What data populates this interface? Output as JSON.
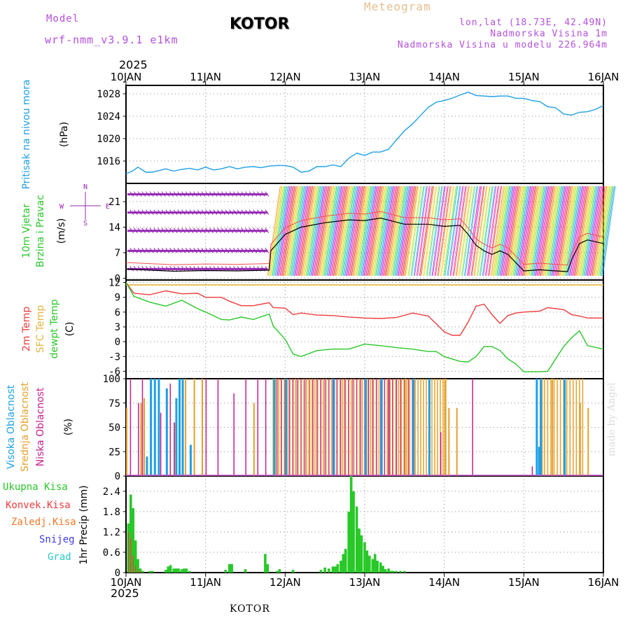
{
  "header": {
    "model_label": "Model",
    "model_name": "wrf-nmm_v3.9.1 e1km",
    "city": "KOTOR",
    "meteogram": "Meteogram",
    "lonlat": "lon,lat (18.73E, 42.49N)",
    "elevation": "Nadmorska Visina 1m",
    "model_elevation": "Nadmorska Visina u modelu 226.964m",
    "year_top": "2025",
    "year_bottom": "2025",
    "footer": "KOTOR",
    "watermark": "made by Angel"
  },
  "colors": {
    "pressure": "#1ea0e6",
    "temp2m": "#f03c3c",
    "sfc": "#e6b43c",
    "dewpt": "#28c828",
    "high_cloud": "#1ea0e6",
    "mid_cloud": "#e6a028",
    "low_cloud": "#c81e8c",
    "total_precip": "#28c828",
    "conv_precip": "#f03c3c",
    "frozen": "#f07828",
    "snow": "#3c3cf0",
    "graupel": "#28c8c8",
    "wind_purple": "#9628b4",
    "model_title": "#b450dc",
    "meteogram": "#e6be8c"
  },
  "chart_data": [
    {
      "id": "pressure",
      "type": "line",
      "ylabel_left": "Pritisak na nivou mora",
      "ylabel_unit": "(hPa)",
      "ylim": [
        1012,
        1029.5
      ],
      "yticks": [
        1016,
        1020,
        1024,
        1028
      ],
      "x_days": [
        0,
        0.08,
        0.15,
        0.25,
        0.33,
        0.42,
        0.5,
        0.6,
        0.7,
        0.8,
        0.9,
        1.0,
        1.1,
        1.2,
        1.3,
        1.4,
        1.5,
        1.6,
        1.7,
        1.8,
        1.9,
        2.0,
        2.1,
        2.2,
        2.3,
        2.4,
        2.5,
        2.6,
        2.7,
        2.8,
        2.9,
        3.0,
        3.1,
        3.2,
        3.3,
        3.4,
        3.5,
        3.6,
        3.7,
        3.8,
        3.9,
        4.0,
        4.1,
        4.2,
        4.3,
        4.4,
        4.5,
        4.6,
        4.7,
        4.8,
        4.9,
        5.0,
        5.1,
        5.2,
        5.3,
        5.4,
        5.5,
        5.6,
        5.7,
        5.8,
        5.9,
        6.0
      ],
      "values": [
        1013.7,
        1014.2,
        1014.9,
        1014.0,
        1014.0,
        1014.3,
        1014.6,
        1014.2,
        1014.5,
        1014.7,
        1014.4,
        1014.9,
        1014.4,
        1014.6,
        1015.0,
        1014.6,
        1014.9,
        1015.0,
        1014.8,
        1015.1,
        1015.2,
        1015.2,
        1014.9,
        1014.0,
        1014.2,
        1015.0,
        1015.0,
        1015.3,
        1015.0,
        1016.5,
        1017.4,
        1017.0,
        1017.6,
        1017.6,
        1018.1,
        1019.8,
        1021.4,
        1022.6,
        1024.1,
        1025.6,
        1026.5,
        1026.8,
        1027.2,
        1027.8,
        1028.3,
        1027.7,
        1027.6,
        1027.5,
        1027.6,
        1027.6,
        1027.2,
        1027.2,
        1026.8,
        1026.6,
        1025.7,
        1025.5,
        1024.4,
        1024.2,
        1024.7,
        1024.8,
        1025.2,
        1025.9
      ]
    },
    {
      "id": "wind",
      "type": "line",
      "ylabel_left": "10m Vjetar",
      "ylabel_left2": "Brzina i Pravac",
      "ylabel_unit": "(m/s)",
      "compass": "N S E W",
      "ylim": [
        -0.5,
        26
      ],
      "yticks": [
        0,
        7,
        14,
        21
      ],
      "x_days": [
        0,
        0.3,
        0.6,
        1.0,
        1.4,
        1.8,
        1.82,
        2.0,
        2.2,
        2.5,
        2.8,
        3.0,
        3.2,
        3.5,
        3.8,
        4.0,
        4.2,
        4.3,
        4.4,
        4.5,
        4.6,
        4.7,
        4.8,
        5.0,
        5.2,
        5.4,
        5.55,
        5.6,
        5.7,
        5.8,
        6.0
      ],
      "values": [
        2.5,
        2.2,
        1.9,
        2.1,
        2.0,
        2.2,
        7.5,
        12,
        14,
        15.2,
        16,
        15.8,
        16.5,
        14.8,
        14.8,
        14.2,
        14.5,
        12,
        9,
        7.5,
        6.5,
        7.5,
        6.5,
        2,
        2.3,
        2.0,
        1.8,
        5,
        9.5,
        10.5,
        9.5
      ]
    },
    {
      "id": "temperature",
      "type": "line",
      "ylabel_left": "2m Temp",
      "ylabel_left2": "SFC Temp",
      "ylabel_left3": "dewpt Temp",
      "ylabel_unit": "(C)",
      "ylim": [
        -7.5,
        12.5
      ],
      "yticks": [
        -6,
        -3,
        0,
        3,
        6,
        9,
        12
      ],
      "sfc_temp": 11.5,
      "x_days": [
        0,
        0.1,
        0.3,
        0.5,
        0.7,
        0.9,
        1.0,
        1.2,
        1.3,
        1.45,
        1.6,
        1.8,
        1.85,
        2.0,
        2.1,
        2.2,
        2.4,
        2.6,
        2.8,
        3.0,
        3.2,
        3.4,
        3.6,
        3.8,
        3.9,
        4.0,
        4.1,
        4.2,
        4.3,
        4.4,
        4.5,
        4.6,
        4.7,
        4.8,
        4.9,
        5.0,
        5.2,
        5.3,
        5.5,
        5.6,
        5.7,
        5.8,
        6.0
      ],
      "temp2m": [
        12,
        9.8,
        9.5,
        10.3,
        9.7,
        9.8,
        9.0,
        9.0,
        8.2,
        7.3,
        7.3,
        7.9,
        6.9,
        6.8,
        5.5,
        5.8,
        5.4,
        5.3,
        5.0,
        4.8,
        4.7,
        4.9,
        5.8,
        5.2,
        3.6,
        2.0,
        1.3,
        1.3,
        4.0,
        7.2,
        7.6,
        5.5,
        3.7,
        5.3,
        5.8,
        6.0,
        6.2,
        6.9,
        6.5,
        5.5,
        5.2,
        4.8,
        4.8
      ],
      "dewpt": [
        12,
        9.2,
        8.0,
        7.2,
        8.4,
        6.7,
        6.0,
        4.5,
        4.4,
        5.0,
        4.5,
        5.6,
        3.2,
        0.5,
        -2.5,
        -3.0,
        -1.8,
        -1.5,
        -1.5,
        -0.5,
        -0.8,
        -1.2,
        -1.5,
        -2.0,
        -2.0,
        -3.0,
        -3.5,
        -4.0,
        -4.1,
        -3.0,
        -1.0,
        -1.0,
        -1.8,
        -3.5,
        -4.5,
        -6.1,
        -6.1,
        -6.0,
        -1.0,
        0.8,
        2.2,
        -0.8,
        -1.5
      ]
    },
    {
      "id": "cloud",
      "type": "bar",
      "ylabel_left": "Visoka Oblacnost",
      "ylabel_left2": "Srednja Oblacnost",
      "ylabel_left3": "Niska Oblacnost",
      "ylabel_unit": "(%)",
      "ylim": [
        0,
        100
      ],
      "yticks": [
        0,
        25,
        50,
        75,
        100
      ],
      "high": [
        [
          0.25,
          20
        ],
        [
          0.3,
          100
        ],
        [
          0.35,
          100
        ],
        [
          0.4,
          100
        ],
        [
          0.5,
          90
        ],
        [
          0.62,
          80
        ],
        [
          0.66,
          100
        ],
        [
          0.7,
          100
        ],
        [
          0.8,
          32
        ],
        [
          1.85,
          100
        ],
        [
          2.0,
          100
        ],
        [
          2.6,
          100
        ],
        [
          3.0,
          100
        ],
        [
          3.2,
          100
        ],
        [
          3.6,
          100
        ],
        [
          3.8,
          100
        ],
        [
          5.15,
          100
        ],
        [
          5.18,
          30
        ],
        [
          5.2,
          100
        ],
        [
          5.5,
          100
        ]
      ],
      "mid": [
        [
          0.0,
          70
        ],
        [
          0.18,
          75
        ],
        [
          0.22,
          80
        ],
        [
          0.6,
          55
        ],
        [
          0.74,
          100
        ],
        [
          0.85,
          100
        ],
        [
          0.95,
          100
        ],
        [
          1.6,
          75
        ],
        [
          2.0,
          100
        ],
        [
          2.3,
          100
        ],
        [
          3.0,
          100
        ],
        [
          3.5,
          100
        ],
        [
          3.8,
          100
        ],
        [
          4.0,
          100
        ],
        [
          4.05,
          70
        ],
        [
          4.15,
          70
        ],
        [
          5.22,
          100
        ],
        [
          5.35,
          100
        ],
        [
          5.5,
          100
        ],
        [
          5.7,
          75
        ],
        [
          5.8,
          70
        ]
      ],
      "low": [
        [
          0.05,
          100
        ],
        [
          0.15,
          75
        ],
        [
          0.2,
          100
        ],
        [
          0.43,
          65
        ],
        [
          0.55,
          95
        ],
        [
          0.6,
          55
        ],
        [
          0.7,
          100
        ],
        [
          1.0,
          100
        ],
        [
          1.15,
          100
        ],
        [
          1.35,
          85
        ],
        [
          1.5,
          100
        ],
        [
          1.65,
          100
        ],
        [
          1.75,
          100
        ],
        [
          3.2,
          100
        ],
        [
          3.3,
          100
        ],
        [
          3.95,
          45
        ],
        [
          4.35,
          100
        ],
        [
          5.1,
          10
        ]
      ]
    },
    {
      "id": "precip",
      "type": "bar",
      "ylabel_left": "Ukupna Kisa",
      "ylabel_left2": "Konvek.Kisa",
      "ylabel_left3": "Zaledj.Kisa",
      "ylabel_left4": "Snijeg",
      "ylabel_left5": "Grad",
      "ylabel_unit": "1hr Precip (mm)",
      "ylim": [
        0,
        2.85
      ],
      "yticks": [
        0,
        0.6,
        1.2,
        1.8,
        2.4
      ],
      "x_days": [
        0.03,
        0.06,
        0.09,
        0.12,
        0.15,
        0.18,
        0.21,
        0.3,
        0.33,
        0.5,
        0.53,
        0.56,
        0.6,
        0.63,
        0.66,
        0.7,
        0.73,
        0.76,
        0.8,
        1.25,
        1.3,
        1.33,
        1.5,
        1.75,
        1.78,
        1.9,
        1.93,
        2.1,
        2.45,
        2.5,
        2.55,
        2.6,
        2.63,
        2.66,
        2.7,
        2.73,
        2.76,
        2.8,
        2.83,
        2.86,
        2.9,
        2.93,
        2.96,
        3.0,
        3.03,
        3.06,
        3.1,
        3.13,
        3.16,
        3.2,
        3.23,
        3.26,
        3.3,
        3.33,
        3.36,
        3.4,
        3.45,
        3.5
      ],
      "total": [
        1.45,
        2.3,
        1.9,
        0.95,
        0.4,
        0.12,
        0.05,
        0.05,
        0.05,
        0.08,
        0.18,
        0.22,
        0.12,
        0.12,
        0.12,
        0.1,
        0.12,
        0.12,
        0.05,
        0.08,
        0.25,
        0.25,
        0.1,
        0.55,
        0.25,
        0.05,
        0.1,
        0.08,
        0.08,
        0.15,
        0.12,
        0.18,
        0.18,
        0.25,
        0.35,
        0.55,
        0.7,
        1.8,
        2.85,
        2.4,
        1.95,
        1.3,
        1.1,
        0.9,
        0.65,
        0.5,
        0.4,
        0.55,
        0.35,
        0.3,
        0.2,
        0.1,
        0.12,
        0.05,
        0.05,
        0.05,
        0.05,
        0.05
      ],
      "convective": [
        1.2,
        1.0,
        0.5,
        0.2,
        0.1,
        0.05,
        0.0,
        0,
        0,
        0,
        0,
        0,
        0,
        0,
        0,
        0,
        0,
        0,
        0,
        0,
        0,
        0,
        0,
        0,
        0,
        0,
        0,
        0,
        0,
        0,
        0,
        0,
        0,
        0,
        0,
        0,
        0,
        0,
        0,
        0,
        0,
        0,
        0,
        0,
        0,
        0,
        0,
        0,
        0,
        0,
        0,
        0,
        0,
        0,
        0,
        0,
        0,
        0
      ]
    }
  ],
  "xaxis": {
    "ticks": [
      "10JAN",
      "11JAN",
      "12JAN",
      "13JAN",
      "14JAN",
      "15JAN",
      "16JAN"
    ]
  }
}
